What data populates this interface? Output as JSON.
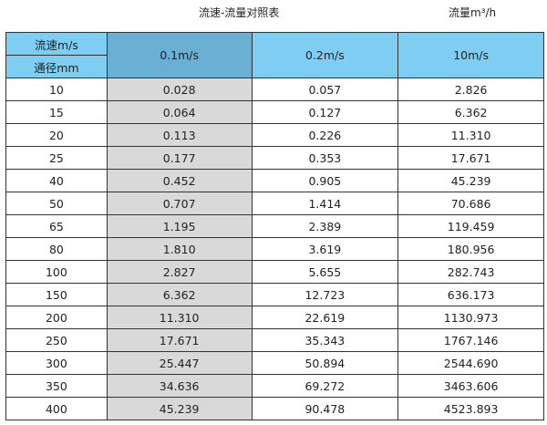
{
  "title": "流速-流量对照表",
  "unit_label": "流量m³/h",
  "header": {
    "velocity_label": "流速m/s",
    "diameter_label": "通径mm",
    "columns": [
      "0.1m/s",
      "0.2m/s",
      "10m/s"
    ]
  },
  "rows": [
    [
      "10",
      "0.028",
      "0.057",
      "2.826"
    ],
    [
      "15",
      "0.064",
      "0.127",
      "6.362"
    ],
    [
      "20",
      "0.113",
      "0.226",
      "11.310"
    ],
    [
      "25",
      "0.177",
      "0.353",
      "17.671"
    ],
    [
      "40",
      "0.452",
      "0.905",
      "45.239"
    ],
    [
      "50",
      "0.707",
      "1.414",
      "70.686"
    ],
    [
      "65",
      "1.195",
      "2.389",
      "119.459"
    ],
    [
      "80",
      "1.810",
      "3.619",
      "180.956"
    ],
    [
      "100",
      "2.827",
      "5.655",
      "282.743"
    ],
    [
      "150",
      "6.362",
      "12.723",
      "636.173"
    ],
    [
      "200",
      "11.310",
      "22.619",
      "1130.973"
    ],
    [
      "250",
      "17.671",
      "35.343",
      "1767.146"
    ],
    [
      "300",
      "25.447",
      "50.894",
      "2544.690"
    ],
    [
      "350",
      "34.636",
      "69.272",
      "3463.606"
    ],
    [
      "400",
      "45.239",
      "90.478",
      "4523.893"
    ]
  ],
  "colors": {
    "header": "#7ecef4",
    "header_selected": "#6ab0d4",
    "highlight_column": "#d9d9d9"
  }
}
